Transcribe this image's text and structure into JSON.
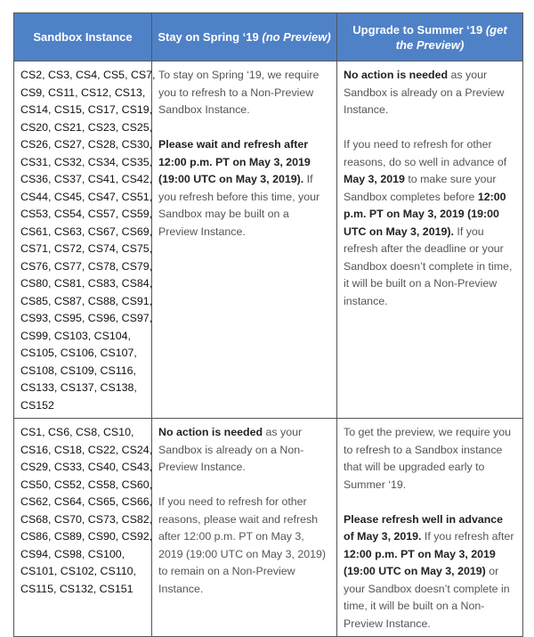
{
  "header": {
    "col1": "Sandbox Instance",
    "col2_main": "Stay on Spring ‘19 ",
    "col2_italic": "(no Preview)",
    "col3_main": "Upgrade to Summer ‘19 ",
    "col3_italic": "(get the Preview)"
  },
  "header_color": "#4f81c7",
  "rows": [
    {
      "instances": [
        "CS2, CS3, CS4, CS5, CS7,",
        "CS9, CS11, CS12, CS13,",
        "CS14, CS15, CS17, CS19,",
        "CS20, CS21, CS23, CS25,",
        "CS26, CS27, CS28, CS30,",
        "CS31, CS32, CS34, CS35,",
        "CS36, CS37, CS41, CS42,",
        "CS44, CS45, CS47, CS51,",
        "CS53, CS54, CS57, CS59,",
        "CS61, CS63, CS67, CS69,",
        "CS71, CS72, CS74, CS75,",
        "CS76, CS77, CS78, CS79,",
        "CS80, CS81, CS83, CS84,",
        "CS85, CS87, CS88, CS91,",
        "CS93, CS95, CS96, CS97,",
        "CS99, CS103, CS104,",
        "CS105, CS106, CS107,",
        "CS108, CS109, CS116,",
        "CS133, CS137, CS138,",
        "CS152"
      ],
      "spring": [
        [
          {
            "t": "To stay on Spring ‘19, we require you to refresh to a Non-Preview Sandbox Instance."
          }
        ],
        [
          {
            "t": "Please wait and refresh after 12:00 p.m. PT on May 3, 2019 (19:00 UTC on May 3, 2019).",
            "b": true
          },
          {
            "t": "  If you refresh before this time, your Sandbox may be built on a Preview Instance."
          }
        ]
      ],
      "summer": [
        [
          {
            "t": "No action is needed",
            "b": true
          },
          {
            "t": " as your Sandbox is already on a Preview Instance."
          }
        ],
        [
          {
            "t": "If you need to refresh for other reasons, do so well in advance of "
          },
          {
            "t": "May 3, 2019",
            "b": true
          },
          {
            "t": " to make sure your Sandbox completes before "
          },
          {
            "t": "12:00 p.m. PT on May 3, 2019 (19:00 UTC on May 3, 2019).",
            "b": true
          },
          {
            "t": " If you refresh after the deadline or your Sandbox doesn’t complete in time, it will be built on a Non-Preview instance."
          }
        ]
      ]
    },
    {
      "instances": [
        "CS1, CS6, CS8, CS10,",
        "CS16, CS18, CS22, CS24,",
        "CS29, CS33, CS40, CS43,",
        "CS50, CS52, CS58, CS60,",
        "CS62, CS64, CS65, CS66,",
        "CS68, CS70, CS73, CS82,",
        "CS86, CS89, CS90, CS92,",
        "CS94, CS98, CS100,",
        "CS101, CS102, CS110,",
        "CS115, CS132, CS151"
      ],
      "spring": [
        [
          {
            "t": "No action is needed",
            "b": true
          },
          {
            "t": " as your Sandbox is already on a Non-Preview Instance."
          }
        ],
        [
          {
            "t": "If you need to refresh for other reasons, please wait and refresh after 12:00 p.m. PT on May 3, 2019 (19:00 UTC on May 3, 2019) to remain on a Non-Preview Instance."
          }
        ]
      ],
      "summer": [
        [
          {
            "t": "To get the preview, we require you to refresh to a Sandbox instance that will be upgraded early to Summer ‘19."
          }
        ],
        [
          {
            "t": "Please refresh well in advance of May 3, 2019.",
            "b": true
          },
          {
            "t": "  If you refresh after "
          },
          {
            "t": "12:00 p.m. PT on May 3, 2019 (19:00 UTC on May 3, 2019)",
            "b": true
          },
          {
            "t": " or your Sandbox doesn’t complete in time, it will be built on a Non-Preview Instance."
          }
        ]
      ]
    }
  ]
}
